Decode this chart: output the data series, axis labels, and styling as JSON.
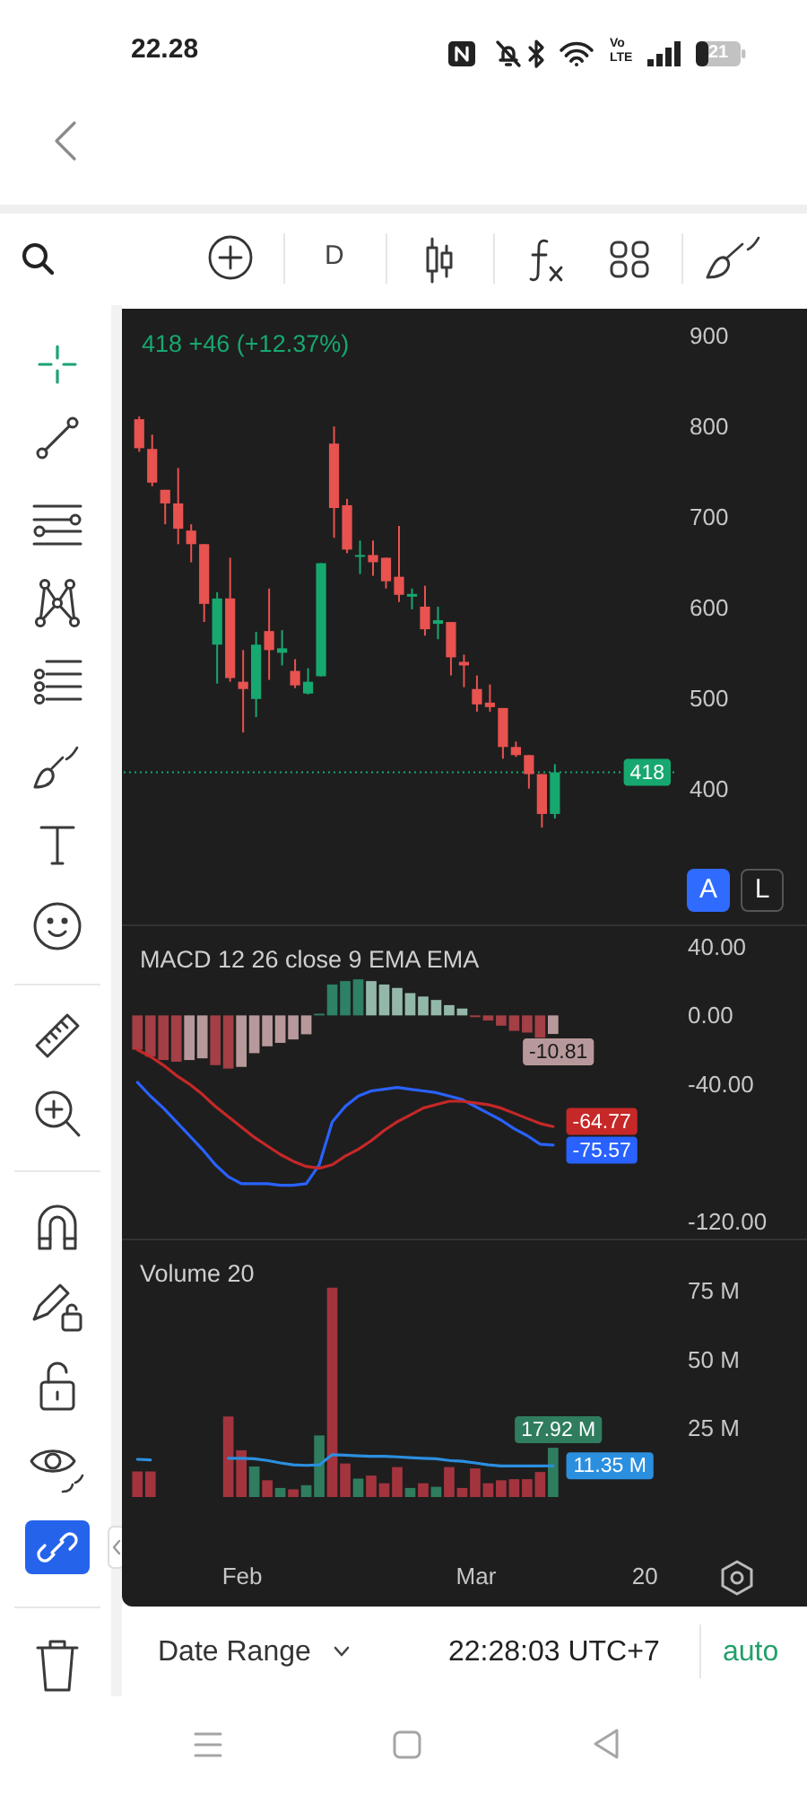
{
  "chart_data": [
    {
      "type": "candlestick",
      "subtitle": "418 +46 (+12.37%)",
      "categories": [
        null,
        null,
        null,
        null,
        null,
        null,
        null,
        null,
        null,
        null,
        null,
        null,
        null,
        null,
        null,
        null,
        null,
        null,
        null,
        null,
        null,
        null,
        null,
        null,
        null,
        null,
        null,
        null,
        null,
        null,
        null,
        null,
        null,
        null,
        null,
        null,
        null,
        null,
        null,
        null,
        null
      ],
      "ohlc": [
        [
          808,
          811,
          772,
          776
        ],
        [
          775,
          791,
          734,
          738
        ],
        [
          730,
          730,
          692,
          715
        ],
        [
          715,
          754,
          670,
          687
        ],
        [
          685,
          692,
          650,
          670
        ],
        [
          670,
          670,
          584,
          604
        ],
        [
          559,
          617,
          516,
          610
        ],
        [
          610,
          655,
          518,
          522
        ],
        [
          518,
          553,
          462,
          510
        ],
        [
          499,
          573,
          479,
          559
        ],
        [
          574,
          621,
          520,
          553
        ],
        [
          550,
          575,
          536,
          555
        ],
        [
          530,
          543,
          511,
          514
        ],
        [
          505,
          533,
          504,
          518
        ],
        [
          524,
          649,
          524,
          649
        ],
        [
          781,
          800,
          677,
          710
        ],
        [
          713,
          720,
          660,
          664
        ],
        [
          656,
          674,
          637,
          658
        ],
        [
          658,
          674,
          635,
          650
        ],
        [
          655,
          655,
          621,
          629
        ],
        [
          634,
          690,
          606,
          614
        ],
        [
          612,
          621,
          598,
          615
        ],
        [
          601,
          624,
          569,
          576
        ],
        [
          582,
          601,
          565,
          586
        ],
        [
          584,
          584,
          525,
          545
        ],
        [
          540,
          548,
          512,
          536
        ],
        [
          510,
          525,
          485,
          493
        ],
        [
          495,
          515,
          485,
          490
        ],
        [
          489,
          489,
          433,
          446
        ],
        [
          446,
          452,
          435,
          437
        ],
        [
          437,
          437,
          400,
          416
        ],
        [
          416,
          416,
          357,
          372
        ],
        [
          372,
          427,
          367,
          418
        ],
        null,
        null,
        null,
        null,
        null,
        null,
        null,
        null
      ],
      "colors": [
        "#e8524f",
        "#e8524f",
        "#e8524f",
        "#e8524f",
        "#e8524f",
        "#e8524f",
        "#17a86f",
        "#e8524f",
        "#e8524f",
        "#17a86f",
        "#e8524f",
        "#17a86f",
        "#e8524f",
        "#17a86f",
        "#17a86f",
        "#e8524f",
        "#e8524f",
        "#17a86f",
        "#e8524f",
        "#e8524f",
        "#e8524f",
        "#17a86f",
        "#e8524f",
        "#17a86f",
        "#e8524f",
        "#e8524f",
        "#e8524f",
        "#e8524f",
        "#e8524f",
        "#e8524f",
        "#e8524f",
        "#e8524f",
        "#17a86f",
        null,
        null,
        null,
        null,
        null,
        null,
        null,
        null
      ],
      "ylim": [
        250,
        930
      ],
      "yticks": [
        400,
        500,
        600,
        700,
        800,
        900
      ],
      "ref_lines": [
        {
          "axis": "y",
          "value": 418,
          "label": "418",
          "color": "#17a86f",
          "line_style": "dotted"
        }
      ]
    },
    {
      "type": "bar",
      "title": "MACD 12 26 close 9 EMA EMA",
      "categories": [
        null,
        null,
        null,
        null,
        null,
        null,
        null,
        null,
        null,
        null,
        null,
        null,
        null,
        null,
        null,
        null,
        null,
        null,
        null,
        null,
        null,
        null,
        null,
        null,
        null,
        null,
        null,
        null,
        null,
        null,
        null,
        null,
        null,
        null,
        null,
        null,
        null,
        null,
        null,
        null,
        null
      ],
      "series": [
        {
          "type": "bar",
          "values": [
            -20,
            -24,
            -26,
            -27,
            -26,
            -25,
            -29,
            -31,
            -30,
            -22,
            -18,
            -16,
            -14,
            -11,
            1,
            18,
            20,
            21,
            20,
            18,
            16,
            13,
            11,
            9,
            6,
            4,
            -1,
            -3,
            -6,
            -9,
            -10,
            -13,
            -10.81,
            null,
            null,
            null,
            null,
            null,
            null,
            null,
            null
          ],
          "colors": [
            "#a33f45",
            "#a33f45",
            "#a33f45",
            "#a33f45",
            "#b8999b",
            "#b8999b",
            "#a33f45",
            "#a33f45",
            "#b8999b",
            "#b8999b",
            "#b8999b",
            "#b8999b",
            "#b8999b",
            "#b8999b",
            "#2e8066",
            "#2e8066",
            "#2e8066",
            "#2e8066",
            "#93b8aa",
            "#93b8aa",
            "#93b8aa",
            "#93b8aa",
            "#93b8aa",
            "#93b8aa",
            "#93b8aa",
            "#93b8aa",
            "#a33f45",
            "#a33f45",
            "#a33f45",
            "#a33f45",
            "#a33f45",
            "#a33f45",
            "#b8999b",
            null,
            null,
            null,
            null,
            null,
            null,
            null,
            null
          ],
          "value_labels": [
            null,
            null,
            null,
            null,
            null,
            null,
            null,
            null,
            null,
            null,
            null,
            null,
            null,
            null,
            null,
            null,
            null,
            null,
            null,
            null,
            null,
            null,
            null,
            null,
            null,
            null,
            null,
            null,
            null,
            null,
            null,
            null,
            "-10.81",
            null,
            null,
            null,
            null,
            null,
            null,
            null,
            null
          ]
        },
        {
          "type": "line",
          "color": "#2962ff",
          "values": [
            -39,
            -47,
            -54,
            -62,
            -70,
            -78,
            -87,
            -94,
            -98,
            -98,
            -98,
            -99,
            -99,
            -98,
            -87,
            -62,
            -53,
            -47,
            -44,
            -43,
            -42,
            -43,
            -44,
            -45,
            -47,
            -49,
            -53,
            -57,
            -61,
            -66,
            -70,
            -75,
            -75.57,
            null,
            null,
            null,
            null,
            null,
            null,
            null,
            null
          ],
          "value_labels": [
            null,
            null,
            null,
            null,
            null,
            null,
            null,
            null,
            null,
            null,
            null,
            null,
            null,
            null,
            null,
            null,
            null,
            null,
            null,
            null,
            null,
            null,
            null,
            null,
            null,
            null,
            null,
            null,
            null,
            null,
            null,
            null,
            "-75.57",
            null,
            null,
            null,
            null,
            null,
            null,
            null,
            null
          ]
        },
        {
          "type": "line",
          "color": "#c62828",
          "values": [
            -20,
            -24,
            -29,
            -35,
            -40,
            -46,
            -53,
            -59,
            -65,
            -71,
            -76,
            -81,
            -85,
            -88,
            -89,
            -87,
            -82,
            -78,
            -73,
            -67,
            -62,
            -58,
            -54,
            -52,
            -50,
            -50,
            -51,
            -52,
            -54,
            -57,
            -60,
            -63,
            -64.77,
            null,
            null,
            null,
            null,
            null,
            null,
            null,
            null
          ],
          "value_labels": [
            null,
            null,
            null,
            null,
            null,
            null,
            null,
            null,
            null,
            null,
            null,
            null,
            null,
            null,
            null,
            null,
            null,
            null,
            null,
            null,
            null,
            null,
            null,
            null,
            null,
            null,
            null,
            null,
            null,
            null,
            null,
            null,
            "-64.77",
            null,
            null,
            null,
            null,
            null,
            null,
            null,
            null
          ]
        }
      ],
      "ylim": [
        -130,
        53
      ],
      "yticks": [
        {
          "value": 40,
          "label": "40.00"
        },
        {
          "value": 0,
          "label": "0.00"
        },
        {
          "value": -40,
          "label": "-40.00"
        },
        {
          "value": -120,
          "label": "-120.00"
        }
      ]
    },
    {
      "type": "bar",
      "title": "Volume 20",
      "categories": [
        null,
        null,
        null,
        null,
        null,
        null,
        null,
        null,
        "Feb",
        null,
        null,
        null,
        null,
        null,
        null,
        null,
        null,
        null,
        null,
        null,
        null,
        null,
        null,
        null,
        null,
        null,
        "Mar",
        null,
        null,
        null,
        null,
        null,
        null,
        null,
        null,
        null,
        null,
        null,
        null,
        "20",
        null
      ],
      "series": [
        {
          "type": "bar",
          "values": [
            9.3,
            9.3,
            null,
            null,
            null,
            null,
            null,
            29.3,
            17,
            11.1,
            6.1,
            3.3,
            2.8,
            4.3,
            22.4,
            76.1,
            12.2,
            6.7,
            7.8,
            5,
            10.9,
            3.3,
            5,
            3.7,
            10.9,
            3.3,
            10.4,
            5,
            6.1,
            6.5,
            6.5,
            9.1,
            17.92,
            null,
            null,
            null,
            null,
            null,
            null,
            null,
            null
          ],
          "colors": [
            "#a3343e",
            "#a3343e",
            null,
            null,
            null,
            null,
            null,
            "#a3343e",
            "#a3343e",
            "#2f7d5e",
            "#a3343e",
            "#2f7d5e",
            "#a3343e",
            "#2f7d5e",
            "#2f7d5e",
            "#a3343e",
            "#a3343e",
            "#2f7d5e",
            "#a3343e",
            "#a3343e",
            "#a3343e",
            "#2f7d5e",
            "#a3343e",
            "#2f7d5e",
            "#a3343e",
            "#a3343e",
            "#a3343e",
            "#a3343e",
            "#a3343e",
            "#a3343e",
            "#a3343e",
            "#a3343e",
            "#2f7d5e",
            null,
            null,
            null,
            null,
            null,
            null,
            null,
            null
          ],
          "value_labels": [
            null,
            null,
            null,
            null,
            null,
            null,
            null,
            null,
            null,
            null,
            null,
            null,
            null,
            null,
            null,
            null,
            null,
            null,
            null,
            null,
            null,
            null,
            null,
            null,
            null,
            null,
            null,
            null,
            null,
            null,
            null,
            null,
            "17.92 M",
            null,
            null,
            null,
            null,
            null,
            null,
            null,
            null
          ]
        },
        {
          "type": "line",
          "color": "#2b8fe0",
          "values": [
            13.7,
            13.5,
            null,
            null,
            null,
            null,
            null,
            14.1,
            14.1,
            13.9,
            13.3,
            12.4,
            11.7,
            11.5,
            11.7,
            15.4,
            15.2,
            15,
            14.8,
            14.8,
            14.6,
            14.3,
            14.1,
            13.9,
            13.3,
            13,
            12.4,
            11.7,
            11.3,
            11.3,
            11.3,
            11.3,
            11.35,
            null,
            null,
            null,
            null,
            null,
            null,
            null,
            null
          ],
          "value_labels": [
            null,
            null,
            null,
            null,
            null,
            null,
            null,
            null,
            null,
            null,
            null,
            null,
            null,
            null,
            null,
            null,
            null,
            null,
            null,
            null,
            null,
            null,
            null,
            null,
            null,
            null,
            null,
            null,
            null,
            null,
            null,
            null,
            "11.35 M",
            null,
            null,
            null,
            null,
            null,
            null,
            null,
            null
          ]
        }
      ],
      "ylim": [
        0,
        94
      ],
      "yticks": [
        {
          "value": 25,
          "label": "25 M"
        },
        {
          "value": 50,
          "label": "50 M"
        },
        {
          "value": 75,
          "label": "75 M"
        }
      ]
    },
    {
      "type": "other",
      "annotations": [
        "22.28",
        "Vo",
        "LTE",
        "21",
        "D",
        "A",
        "L",
        "Date Range",
        "22:28:03 UTC+7",
        "auto"
      ]
    }
  ]
}
